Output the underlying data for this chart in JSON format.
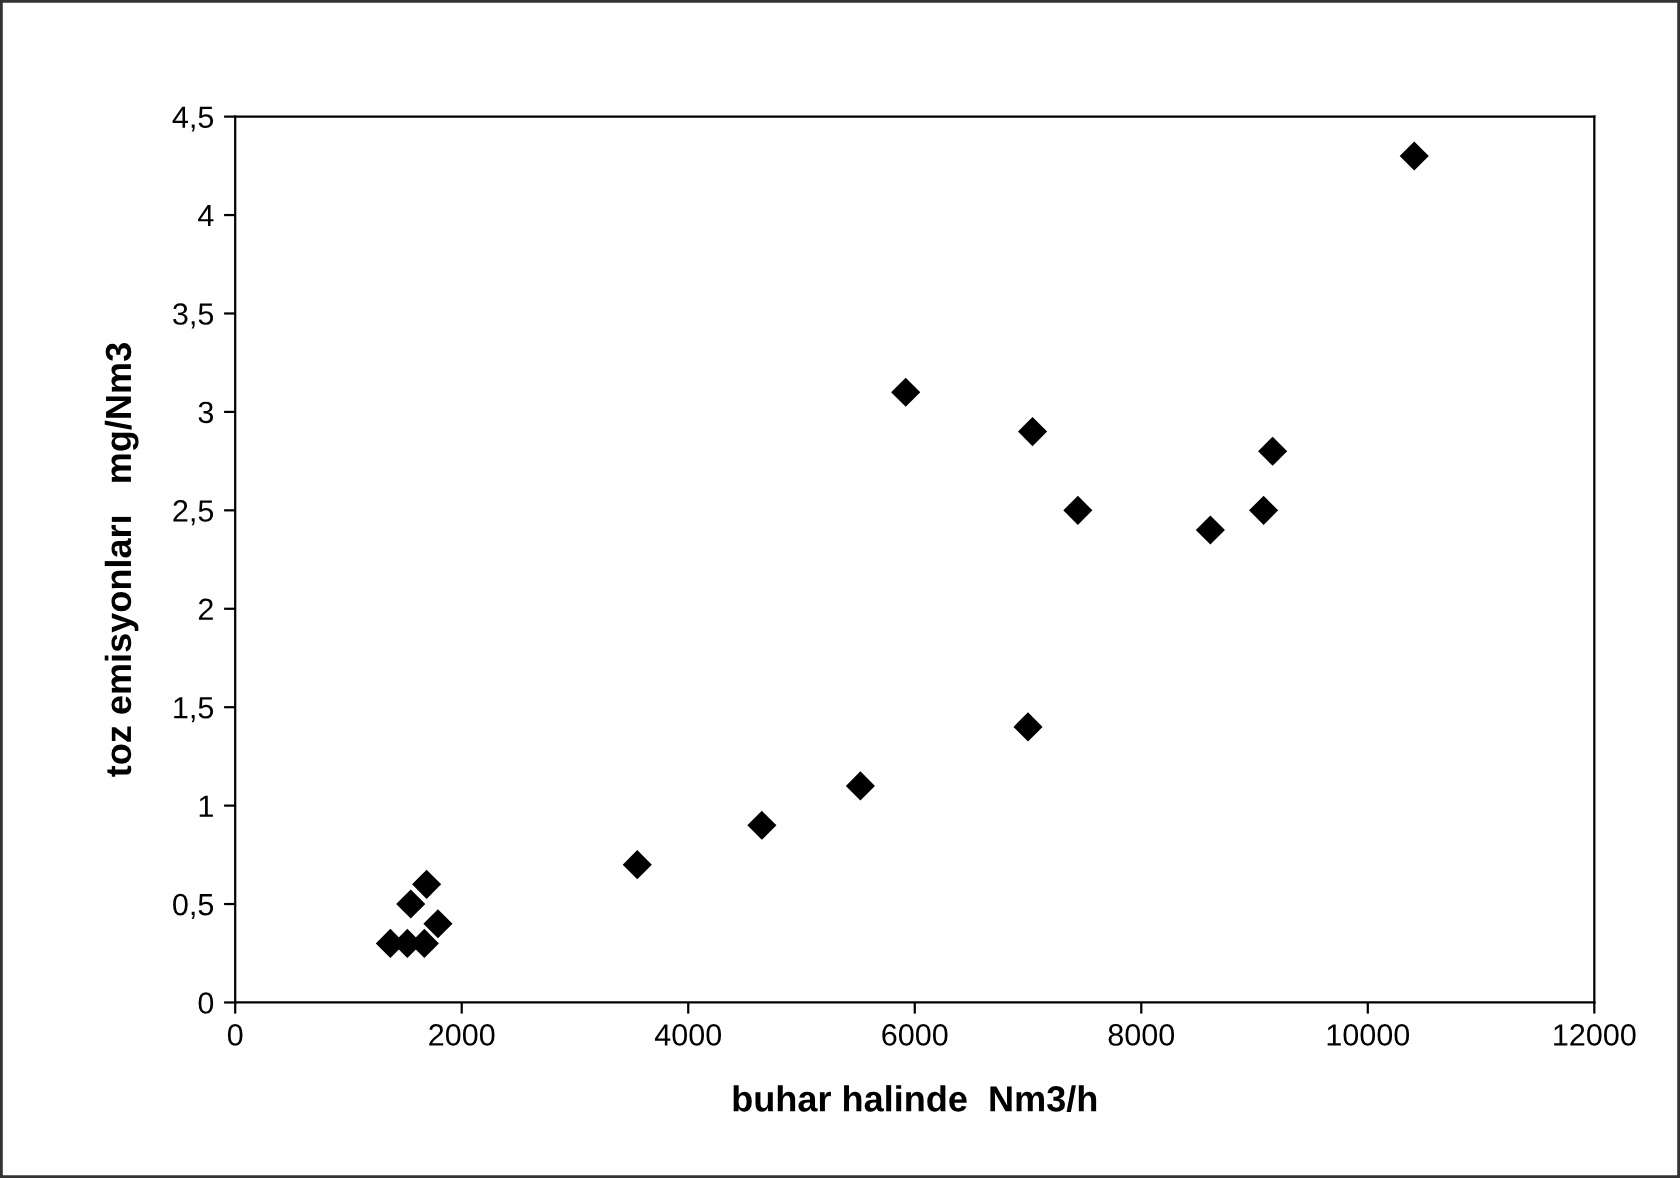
{
  "chart_data": {
    "type": "scatter",
    "xlabel": "buhar halinde  Nm3/h",
    "ylabel": "toz emisyonları   mg/Nm3",
    "x": [
      1370,
      1520,
      1670,
      1550,
      1690,
      1790,
      3550,
      4650,
      5520,
      5920,
      7000,
      7040,
      7440,
      8610,
      9080,
      9160,
      10410
    ],
    "series": [
      {
        "color": "#000000",
        "values": [
          0.3,
          0.3,
          0.3,
          0.5,
          0.6,
          0.4,
          0.7,
          0.9,
          1.1,
          3.1,
          1.4,
          2.9,
          2.5,
          2.4,
          2.5,
          2.8,
          4.3
        ]
      }
    ],
    "xlim": [
      0,
      12000
    ],
    "xticks": [
      0,
      2000,
      4000,
      6000,
      8000,
      10000,
      12000
    ],
    "ylim": [
      0,
      4.5
    ],
    "yticks": [
      0,
      {
        "value": 0.5,
        "label": "0,5"
      },
      1,
      {
        "value": 1.5,
        "label": "1,5"
      },
      2,
      {
        "value": 2.5,
        "label": "2,5"
      },
      3,
      {
        "value": 3.5,
        "label": "3,5"
      },
      4,
      {
        "value": 4.5,
        "label": "4,5"
      }
    ],
    "marker": "diamond",
    "grid": false
  }
}
